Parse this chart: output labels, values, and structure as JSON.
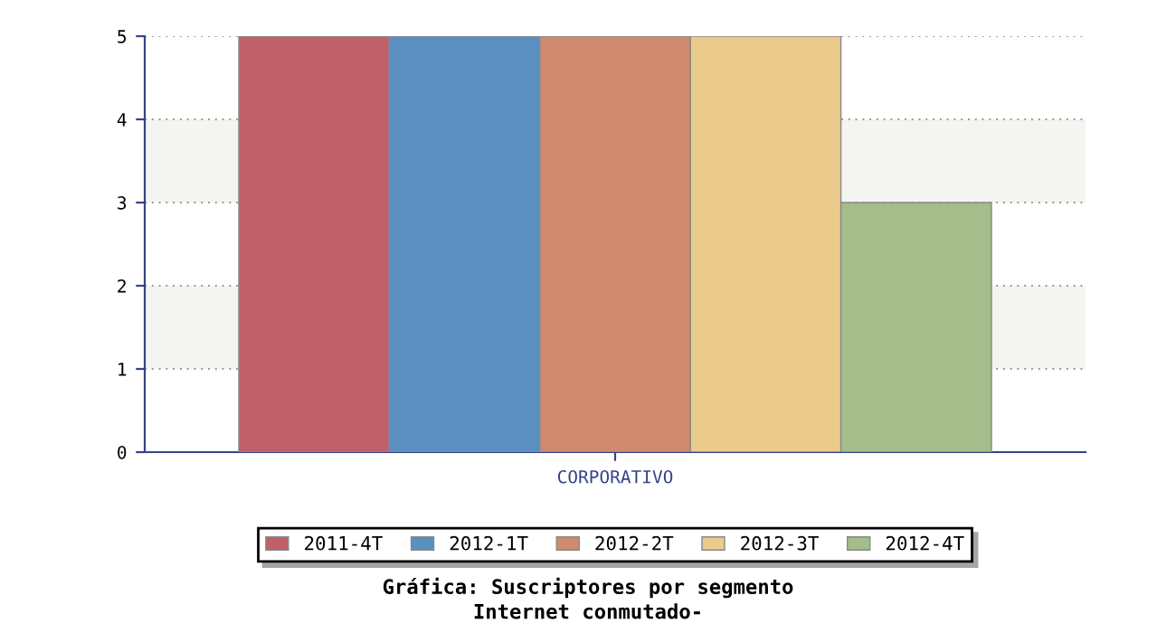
{
  "chart_data": {
    "type": "bar",
    "title": "Gráfica: Suscriptores por segmento",
    "subtitle": "Internet conmutado-",
    "categories": [
      "CORPORATIVO"
    ],
    "series": [
      {
        "name": "2011-4T",
        "color": "#c0606a",
        "values": [
          5
        ]
      },
      {
        "name": "2012-1T",
        "color": "#5b8fc0",
        "values": [
          5
        ]
      },
      {
        "name": "2012-2T",
        "color": "#d08a70",
        "values": [
          5
        ]
      },
      {
        "name": "2012-3T",
        "color": "#eacb8c",
        "values": [
          5
        ]
      },
      {
        "name": "2012-4T",
        "color": "#a4bd8a",
        "values": [
          3
        ]
      }
    ],
    "ylim": [
      0,
      5
    ],
    "yticks": [
      0,
      1,
      2,
      3,
      4,
      5
    ],
    "grid": "y",
    "legend": "bottom",
    "bands": [
      {
        "axis": "y",
        "from": 1,
        "to": 2,
        "color": "#f4f4f0"
      },
      {
        "axis": "y",
        "from": 3,
        "to": 4,
        "color": "#f4f4f0"
      }
    ]
  }
}
